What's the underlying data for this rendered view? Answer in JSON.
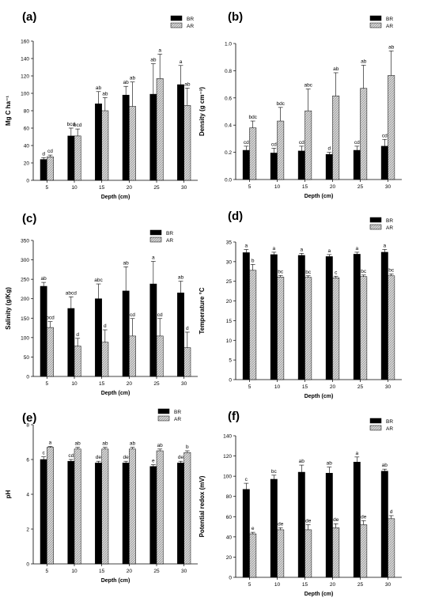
{
  "figure": {
    "series_styles": {
      "BR": "solid-black",
      "AR": "light-gray-hatched"
    }
  },
  "chart_data": [
    {
      "panel": "(a)",
      "type": "bar",
      "ylabel": "Mg C ha⁻¹",
      "xlabel": "Depth (cm)",
      "categories": [
        "5",
        "10",
        "15",
        "20",
        "25",
        "30"
      ],
      "ylim": [
        0,
        160
      ],
      "yticks": [
        "0",
        "20",
        "40",
        "60",
        "80",
        "100",
        "120",
        "140",
        "160"
      ],
      "legend": "top-right",
      "series": [
        {
          "name": "BR",
          "values": [
            24,
            51,
            88,
            98,
            99,
            110
          ],
          "errors": [
            2,
            9,
            14,
            10,
            35,
            22
          ],
          "letters": [
            "d",
            "bcd",
            "ab",
            "ab",
            "ab",
            "a"
          ]
        },
        {
          "name": "AR",
          "values": [
            27,
            51,
            80,
            85,
            117,
            86
          ],
          "errors": [
            2,
            8,
            15,
            28,
            28,
            20
          ],
          "letters": [
            "cd",
            "bcd",
            "ab",
            "ab",
            "a",
            "ab"
          ]
        }
      ]
    },
    {
      "panel": "(b)",
      "type": "bar",
      "ylabel": "Density (g cm⁻³)",
      "xlabel": "Depth (cm)",
      "categories": [
        "5",
        "10",
        "15",
        "20",
        "25",
        "30"
      ],
      "ylim": [
        0,
        1.0
      ],
      "yticks": [
        "0.0",
        "0.2",
        "0.4",
        "0.6",
        "0.8",
        "1.0"
      ],
      "legend": "top-right",
      "series": [
        {
          "name": "BR",
          "values": [
            0.215,
            0.195,
            0.21,
            0.185,
            0.215,
            0.245
          ],
          "errors": [
            0.03,
            0.035,
            0.035,
            0.015,
            0.03,
            0.05
          ],
          "letters": [
            "cd",
            "cd",
            "cd",
            "d",
            "cd",
            "cd"
          ]
        },
        {
          "name": "AR",
          "values": [
            0.38,
            0.43,
            0.505,
            0.615,
            0.67,
            0.765
          ],
          "errors": [
            0.05,
            0.1,
            0.16,
            0.17,
            0.17,
            0.18
          ],
          "letters": [
            "bdc",
            "bdc",
            "abc",
            "ab",
            "ab",
            "ab"
          ]
        }
      ]
    },
    {
      "panel": "(c)",
      "type": "bar",
      "ylabel": "Salinity (g/Kg)",
      "xlabel": "Depth (cm)",
      "categories": [
        "5",
        "10",
        "15",
        "20",
        "25",
        "30"
      ],
      "ylim": [
        0,
        350
      ],
      "yticks": [
        "0",
        "50",
        "100",
        "150",
        "200",
        "250",
        "300",
        "350"
      ],
      "legend": "top-right",
      "series": [
        {
          "name": "BR",
          "values": [
            232,
            175,
            200,
            220,
            238,
            215
          ],
          "errors": [
            10,
            30,
            38,
            62,
            58,
            30
          ],
          "letters": [
            "ab",
            "abcd",
            "abc",
            "ab",
            "a",
            "ab"
          ]
        },
        {
          "name": "AR",
          "values": [
            126,
            78,
            88,
            104,
            104,
            74
          ],
          "errors": [
            15,
            20,
            32,
            45,
            45,
            40
          ],
          "letters": [
            "bcd",
            "d",
            "d",
            "cd",
            "cd",
            "d"
          ]
        }
      ]
    },
    {
      "panel": "(d)",
      "type": "bar",
      "ylabel": "Temperature °C",
      "xlabel": "Depth (cm)",
      "categories": [
        "5",
        "10",
        "15",
        "20",
        "25",
        "30"
      ],
      "ylim": [
        0,
        35
      ],
      "yticks": [
        "0",
        "5",
        "10",
        "15",
        "20",
        "25",
        "30",
        "35"
      ],
      "legend": "top-right",
      "series": [
        {
          "name": "BR",
          "values": [
            32.3,
            31.8,
            31.6,
            31.3,
            31.9,
            32.4
          ],
          "errors": [
            0.8,
            0.6,
            0.5,
            0.5,
            0.5,
            0.7
          ],
          "letters": [
            "a",
            "a",
            "a",
            "a",
            "a",
            "a"
          ]
        },
        {
          "name": "AR",
          "values": [
            27.8,
            26.1,
            26.0,
            25.9,
            26.2,
            26.4
          ],
          "errors": [
            1.5,
            0.4,
            0.4,
            0.4,
            0.4,
            0.5
          ],
          "letters": [
            "b",
            "bc",
            "bc",
            "c",
            "bc",
            "bc"
          ]
        }
      ]
    },
    {
      "panel": "(e)",
      "type": "bar",
      "ylabel": "pH",
      "xlabel": "Depth (cm)",
      "categories": [
        "5",
        "10",
        "15",
        "20",
        "25",
        "30"
      ],
      "ylim": [
        0,
        8
      ],
      "yticks": [
        "0",
        "2",
        "4",
        "6",
        "8"
      ],
      "legend": "top-right",
      "series": [
        {
          "name": "BR",
          "values": [
            6.0,
            5.9,
            5.8,
            5.8,
            5.6,
            5.8
          ],
          "errors": [
            0.15,
            0.1,
            0.1,
            0.1,
            0.1,
            0.1
          ],
          "letters": [
            "c",
            "cd",
            "de",
            "de",
            "e",
            "de"
          ]
        },
        {
          "name": "AR",
          "values": [
            6.7,
            6.6,
            6.6,
            6.6,
            6.5,
            6.4
          ],
          "errors": [
            0.05,
            0.1,
            0.1,
            0.1,
            0.1,
            0.1
          ],
          "letters": [
            "a",
            "ab",
            "ab",
            "ab",
            "ab",
            "b"
          ]
        }
      ]
    },
    {
      "panel": "(f)",
      "type": "bar",
      "ylabel": "Potential redox (mV)",
      "xlabel": "Depth (cm)",
      "categories": [
        "5",
        "10",
        "15",
        "20",
        "25",
        "30"
      ],
      "ylim": [
        0,
        140
      ],
      "yticks": [
        "0",
        "20",
        "40",
        "60",
        "80",
        "100",
        "120",
        "140"
      ],
      "legend": "top-right",
      "series": [
        {
          "name": "BR",
          "values": [
            87,
            97,
            104,
            103,
            114,
            105
          ],
          "errors": [
            6,
            4,
            7,
            6,
            5,
            2
          ],
          "letters": [
            "c",
            "bc",
            "ab",
            "ab",
            "a",
            "ab"
          ]
        },
        {
          "name": "AR",
          "values": [
            43,
            47,
            47,
            49,
            52,
            58
          ],
          "errors": [
            1.5,
            2,
            5,
            4,
            4,
            3
          ],
          "letters": [
            "e",
            "de",
            "de",
            "de",
            "de",
            "d"
          ]
        }
      ]
    }
  ]
}
